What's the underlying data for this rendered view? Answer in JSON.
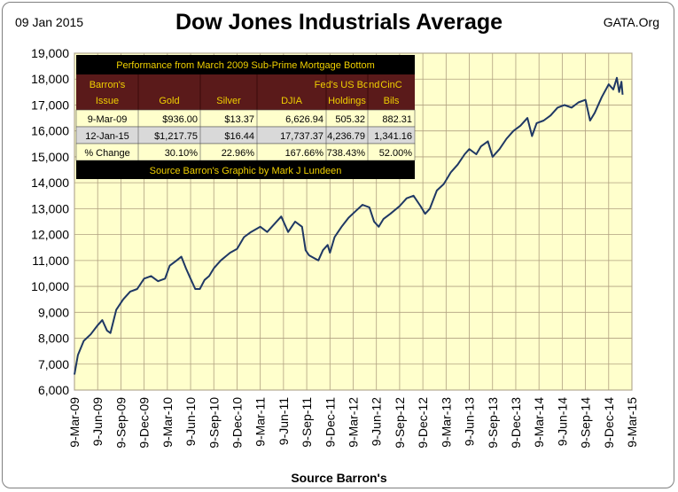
{
  "header": {
    "date": "09 Jan 2015",
    "source": "GATA.Org"
  },
  "chart_data": {
    "type": "line",
    "title": "Dow Jones Industrials Average",
    "xlabel": "Source Barron's",
    "ylabel": "",
    "ylim": [
      6000,
      19000
    ],
    "yticks": [
      6000,
      7000,
      8000,
      9000,
      10000,
      11000,
      12000,
      13000,
      14000,
      15000,
      16000,
      17000,
      18000,
      19000
    ],
    "ytick_labels": [
      "6,000",
      "7,000",
      "8,000",
      "9,000",
      "10,000",
      "11,000",
      "12,000",
      "13,000",
      "14,000",
      "15,000",
      "16,000",
      "17,000",
      "18,000",
      "19,000"
    ],
    "xlim": [
      0,
      24
    ],
    "xtick_labels": [
      "9-Mar-09",
      "9-Jun-09",
      "9-Sep-09",
      "9-Dec-09",
      "9-Mar-10",
      "9-Jun-10",
      "9-Sep-10",
      "9-Dec-10",
      "9-Mar-11",
      "9-Jun-11",
      "9-Sep-11",
      "9-Dec-11",
      "9-Mar-12",
      "9-Jun-12",
      "9-Sep-12",
      "9-Dec-12",
      "9-Mar-13",
      "9-Jun-13",
      "9-Sep-13",
      "9-Dec-13",
      "9-Mar-14",
      "9-Jun-14",
      "9-Sep-14",
      "9-Dec-14",
      "9-Mar-15"
    ],
    "grid": true,
    "series": [
      {
        "name": "DJIA",
        "color": "#1f3864",
        "points": [
          [
            0,
            6600
          ],
          [
            0.15,
            7350
          ],
          [
            0.4,
            7900
          ],
          [
            0.7,
            8150
          ],
          [
            1.0,
            8500
          ],
          [
            1.2,
            8700
          ],
          [
            1.4,
            8300
          ],
          [
            1.55,
            8200
          ],
          [
            1.8,
            9100
          ],
          [
            2.1,
            9500
          ],
          [
            2.4,
            9800
          ],
          [
            2.7,
            9900
          ],
          [
            3.0,
            10300
          ],
          [
            3.3,
            10400
          ],
          [
            3.6,
            10200
          ],
          [
            3.9,
            10300
          ],
          [
            4.1,
            10800
          ],
          [
            4.4,
            11000
          ],
          [
            4.6,
            11150
          ],
          [
            4.8,
            10700
          ],
          [
            5.0,
            10300
          ],
          [
            5.2,
            9900
          ],
          [
            5.4,
            9900
          ],
          [
            5.6,
            10250
          ],
          [
            5.8,
            10400
          ],
          [
            6.0,
            10700
          ],
          [
            6.3,
            11000
          ],
          [
            6.7,
            11300
          ],
          [
            7.0,
            11450
          ],
          [
            7.3,
            11900
          ],
          [
            7.6,
            12100
          ],
          [
            8.0,
            12300
          ],
          [
            8.3,
            12100
          ],
          [
            8.6,
            12400
          ],
          [
            8.9,
            12700
          ],
          [
            9.2,
            12100
          ],
          [
            9.5,
            12500
          ],
          [
            9.8,
            12300
          ],
          [
            9.95,
            11400
          ],
          [
            10.1,
            11200
          ],
          [
            10.3,
            11100
          ],
          [
            10.5,
            11000
          ],
          [
            10.7,
            11400
          ],
          [
            10.9,
            11600
          ],
          [
            11.0,
            11300
          ],
          [
            11.2,
            11900
          ],
          [
            11.5,
            12300
          ],
          [
            11.8,
            12650
          ],
          [
            12.1,
            12900
          ],
          [
            12.4,
            13150
          ],
          [
            12.7,
            13050
          ],
          [
            12.9,
            12500
          ],
          [
            13.1,
            12300
          ],
          [
            13.3,
            12600
          ],
          [
            13.6,
            12800
          ],
          [
            14.0,
            13100
          ],
          [
            14.3,
            13400
          ],
          [
            14.6,
            13500
          ],
          [
            14.9,
            13100
          ],
          [
            15.1,
            12800
          ],
          [
            15.3,
            13000
          ],
          [
            15.6,
            13700
          ],
          [
            15.9,
            13950
          ],
          [
            16.2,
            14400
          ],
          [
            16.5,
            14700
          ],
          [
            16.8,
            15100
          ],
          [
            17.0,
            15300
          ],
          [
            17.3,
            15100
          ],
          [
            17.5,
            15400
          ],
          [
            17.8,
            15600
          ],
          [
            18.0,
            15000
          ],
          [
            18.3,
            15300
          ],
          [
            18.6,
            15700
          ],
          [
            18.9,
            16000
          ],
          [
            19.2,
            16200
          ],
          [
            19.5,
            16500
          ],
          [
            19.7,
            15800
          ],
          [
            19.9,
            16300
          ],
          [
            20.2,
            16400
          ],
          [
            20.5,
            16600
          ],
          [
            20.8,
            16900
          ],
          [
            21.1,
            17000
          ],
          [
            21.4,
            16900
          ],
          [
            21.7,
            17100
          ],
          [
            22.0,
            17200
          ],
          [
            22.2,
            16400
          ],
          [
            22.4,
            16700
          ],
          [
            22.7,
            17300
          ],
          [
            23.0,
            17800
          ],
          [
            23.2,
            17600
          ],
          [
            23.35,
            18050
          ],
          [
            23.45,
            17500
          ],
          [
            23.55,
            17900
          ],
          [
            23.6,
            17400
          ]
        ]
      }
    ]
  },
  "table": {
    "title": "Performance from March 2009 Sub-Prime Mortgage Bottom",
    "headers": [
      [
        "Barron's",
        "Issue"
      ],
      [
        "",
        "Gold"
      ],
      [
        "",
        "Silver"
      ],
      [
        "",
        "DJIA"
      ],
      [
        "Fed's US Bond",
        "Holdings"
      ],
      [
        "CinC",
        "Bils"
      ]
    ],
    "rows": [
      [
        "9-Mar-09",
        "$936.00",
        "$13.37",
        "6,626.94",
        "505.32",
        "882.31"
      ],
      [
        "12-Jan-15",
        "$1,217.75",
        "$16.44",
        "17,737.37",
        "4,236.79",
        "1,341.16"
      ],
      [
        "% Change",
        "30.10%",
        "22.96%",
        "167.66%",
        "738.43%",
        "52.00%"
      ]
    ],
    "footer": "Source Barron's  Graphic by Mark J Lundeen"
  },
  "colors": {
    "plot_bg": "#ffffcc",
    "grid": "#b0a080",
    "line": "#1f3864",
    "table_dark": "#000000",
    "table_header": "#5a1a1a",
    "table_text_gold": "#f0d000",
    "row_light": "#ffffcc",
    "row_mid": "#d9d9d9"
  }
}
